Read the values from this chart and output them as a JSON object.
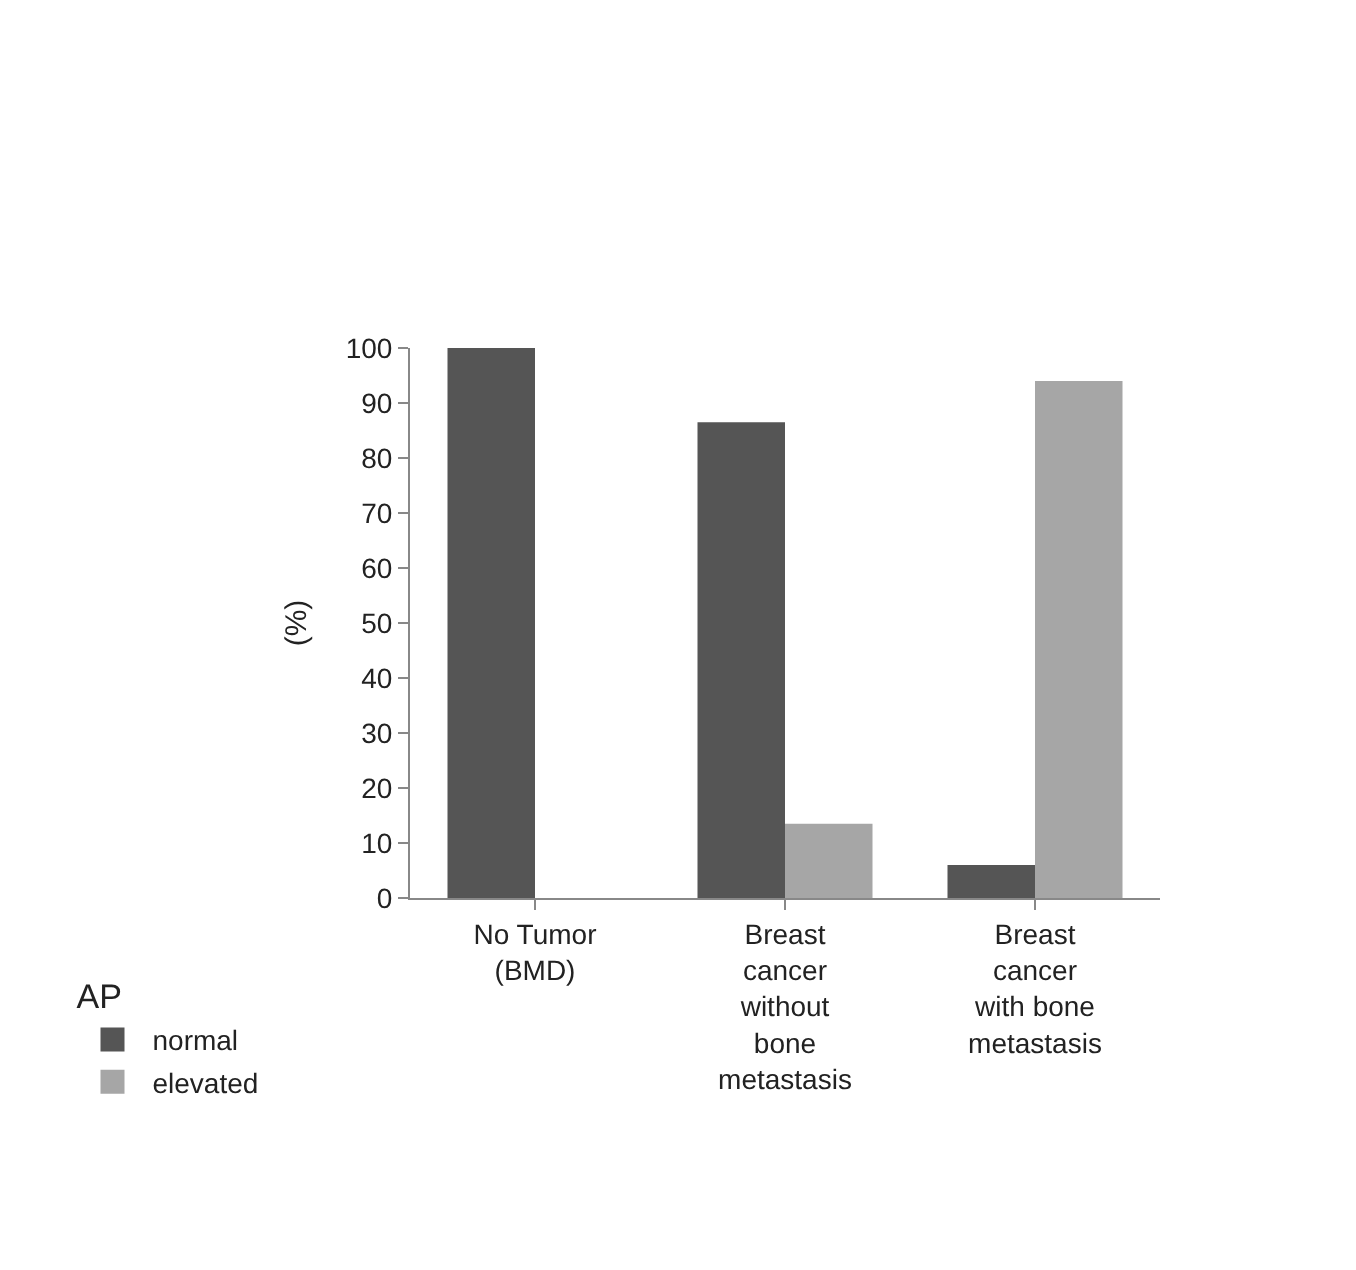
{
  "chart_data": {
    "type": "bar",
    "ylabel": "(%)",
    "legend_title": "AP",
    "categories": [
      "No Tumor (BMD)",
      "Breast cancer without bone metastasis",
      "Breast cancer with bone metastasis"
    ],
    "series": [
      {
        "name": "normal",
        "color": "#555555",
        "values": [
          100,
          86.5,
          6
        ]
      },
      {
        "name": "elevated",
        "color": "#a6a6a6",
        "values": [
          0,
          13.5,
          94
        ]
      }
    ],
    "ylim": [
      0,
      100
    ],
    "yticks": [
      0,
      10,
      20,
      30,
      40,
      50,
      60,
      70,
      80,
      90,
      100
    ],
    "legend": "bottom left"
  }
}
